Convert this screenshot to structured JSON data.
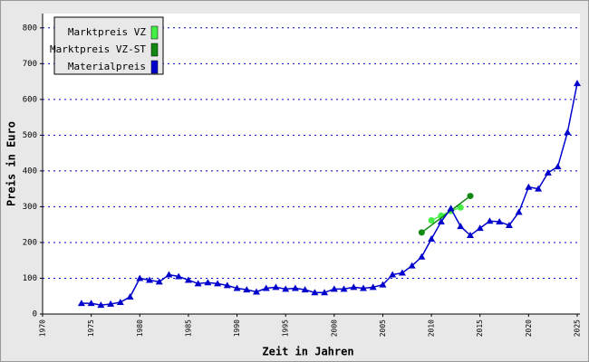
{
  "chart_data": {
    "type": "line",
    "x_label": "Zeit in Jahren",
    "y_label": "Preis in Euro",
    "xlim": [
      1970,
      2025
    ],
    "xticks": [
      1970,
      1975,
      1980,
      1985,
      1990,
      1995,
      2000,
      2005,
      2010,
      2015,
      2020,
      2025
    ],
    "ylim": [
      0,
      840
    ],
    "yticks": [
      0,
      100,
      200,
      300,
      400,
      500,
      600,
      700,
      800
    ],
    "grid": true,
    "legend": "top-left",
    "series": [
      {
        "name": "Marktpreis VZ",
        "color": "#44ee44",
        "marker": "circle",
        "x": [
          2010,
          2011,
          2012,
          2013
        ],
        "values": [
          262,
          275,
          288,
          298
        ]
      },
      {
        "name": "Marktpreis VZ-ST",
        "color": "#118811",
        "marker": "circle",
        "x": [
          2009,
          2014
        ],
        "values": [
          228,
          330
        ]
      },
      {
        "name": "Materialpreis",
        "color": "#0000cc",
        "marker": "triangle",
        "x": [
          1974,
          1975,
          1976,
          1977,
          1978,
          1979,
          1980,
          1981,
          1982,
          1983,
          1984,
          1985,
          1986,
          1987,
          1988,
          1989,
          1990,
          1991,
          1992,
          1993,
          1994,
          1995,
          1996,
          1997,
          1998,
          1999,
          2000,
          2001,
          2002,
          2003,
          2004,
          2005,
          2006,
          2007,
          2008,
          2009,
          2010,
          2011,
          2012,
          2013,
          2014,
          2015,
          2016,
          2017,
          2018,
          2019,
          2020,
          2021,
          2022,
          2023,
          2024,
          2025
        ],
        "values": [
          30,
          30,
          25,
          28,
          33,
          48,
          100,
          95,
          90,
          110,
          105,
          95,
          85,
          88,
          85,
          80,
          72,
          68,
          62,
          72,
          75,
          70,
          72,
          68,
          60,
          60,
          70,
          70,
          75,
          72,
          75,
          82,
          110,
          115,
          135,
          160,
          210,
          258,
          295,
          245,
          220,
          240,
          260,
          258,
          248,
          285,
          355,
          350,
          395,
          412,
          508,
          645
        ]
      }
    ]
  }
}
